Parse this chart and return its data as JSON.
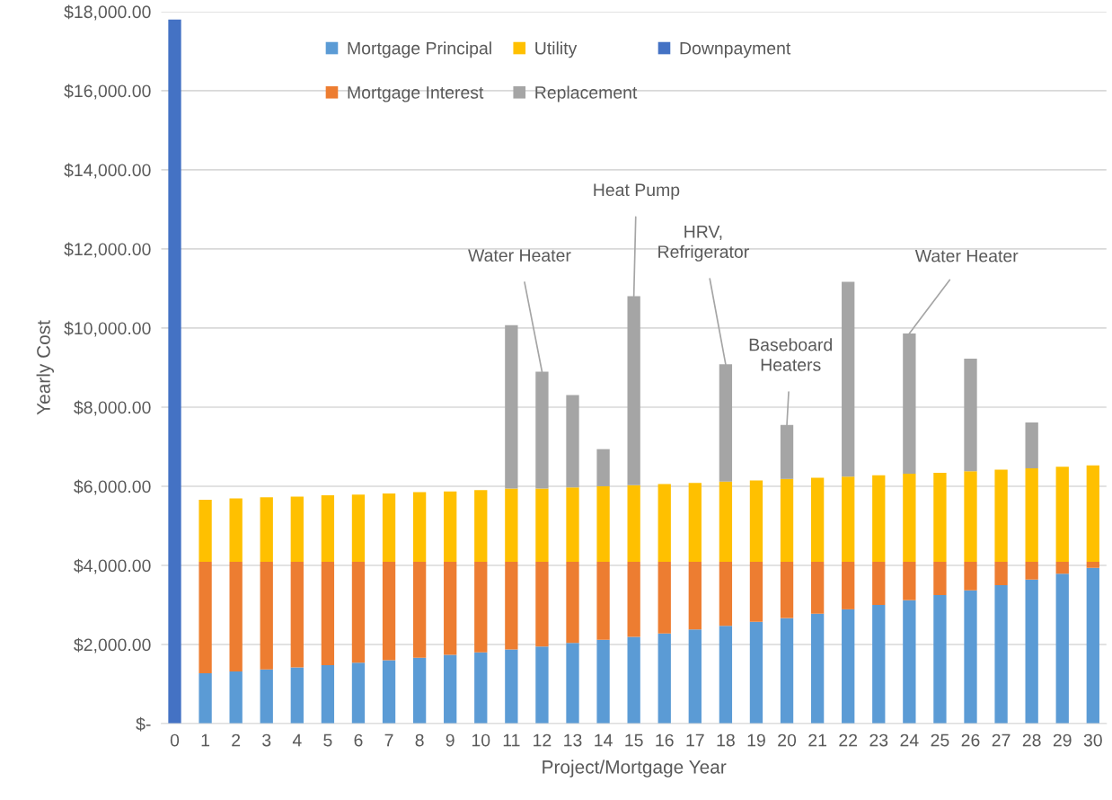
{
  "chart_data": {
    "type": "bar",
    "stacked": true,
    "xlabel": "Project/Mortgage Year",
    "ylabel": "Yearly Cost",
    "categories": [
      "0",
      "1",
      "2",
      "3",
      "4",
      "5",
      "6",
      "7",
      "8",
      "9",
      "10",
      "11",
      "12",
      "13",
      "14",
      "15",
      "16",
      "17",
      "18",
      "19",
      "20",
      "21",
      "22",
      "23",
      "24",
      "25",
      "26",
      "27",
      "28",
      "29",
      "30"
    ],
    "series": [
      {
        "name": "Mortgage Principal",
        "color": "#5b9bd5",
        "values": [
          null,
          1270,
          1320,
          1370,
          1420,
          1475,
          1540,
          1600,
          1665,
          1740,
          1800,
          1875,
          1950,
          2037,
          2120,
          2194,
          2278,
          2380,
          2472,
          2574,
          2667,
          2778,
          2889,
          3000,
          3120,
          3250,
          3370,
          3500,
          3640,
          3787,
          3935
        ]
      },
      {
        "name": "Mortgage Interest",
        "color": "#ed7d31",
        "values": [
          null,
          2820,
          2770,
          2720,
          2670,
          2615,
          2550,
          2490,
          2425,
          2350,
          2290,
          2215,
          2140,
          2053,
          1970,
          1896,
          1812,
          1710,
          1618,
          1516,
          1423,
          1312,
          1201,
          1090,
          970,
          840,
          720,
          590,
          450,
          303,
          155
        ]
      },
      {
        "name": "Utility",
        "color": "#ffc000",
        "values": [
          null,
          1566,
          1600,
          1630,
          1650,
          1680,
          1700,
          1730,
          1760,
          1780,
          1810,
          1850,
          1854,
          1882,
          1910,
          1938,
          1966,
          1993,
          2030,
          2058,
          2095,
          2123,
          2151,
          2188,
          2225,
          2253,
          2290,
          2327,
          2364,
          2401,
          2438
        ]
      },
      {
        "name": "Replacement",
        "color": "#a5a5a5",
        "values": [
          null,
          null,
          null,
          null,
          null,
          null,
          null,
          null,
          null,
          null,
          null,
          4135,
          2952,
          2335,
          939,
          4776,
          null,
          null,
          2963,
          null,
          1365,
          null,
          4927,
          null,
          3546,
          null,
          2849,
          null,
          1160,
          null,
          null
        ]
      },
      {
        "name": "Downpayment",
        "color": "#4472c4",
        "values": [
          17800,
          null,
          null,
          null,
          null,
          null,
          null,
          null,
          null,
          null,
          null,
          null,
          null,
          null,
          null,
          null,
          null,
          null,
          null,
          null,
          null,
          null,
          null,
          null,
          null,
          null,
          null,
          null,
          null,
          null,
          null
        ]
      }
    ],
    "ylim": [
      0,
      18000
    ],
    "yticks": [
      {
        "value": 0,
        "label": "$-"
      },
      {
        "value": 2000,
        "label": "$2,000.00"
      },
      {
        "value": 4000,
        "label": "$4,000.00"
      },
      {
        "value": 6000,
        "label": "$6,000.00"
      },
      {
        "value": 8000,
        "label": "$8,000.00"
      },
      {
        "value": 10000,
        "label": "$10,000.00"
      },
      {
        "value": 12000,
        "label": "$12,000.00"
      },
      {
        "value": 14000,
        "label": "$14,000.00"
      },
      {
        "value": 16000,
        "label": "$16,000.00"
      },
      {
        "value": 18000,
        "label": "$18,000.00"
      }
    ],
    "grid": "y",
    "legend": "top",
    "annotations": [
      {
        "text": "Water Heater",
        "x": "12",
        "y": 8896
      },
      {
        "text": "Heat Pump",
        "x": "15",
        "y": 10804
      },
      {
        "text": "HRV,\nRefrigerator",
        "x": "18",
        "y": 9083
      },
      {
        "text": "Baseboard\nHeaters",
        "x": "20",
        "y": 7550
      },
      {
        "text": "Water Heater",
        "x": "24",
        "y": 9861
      }
    ]
  }
}
